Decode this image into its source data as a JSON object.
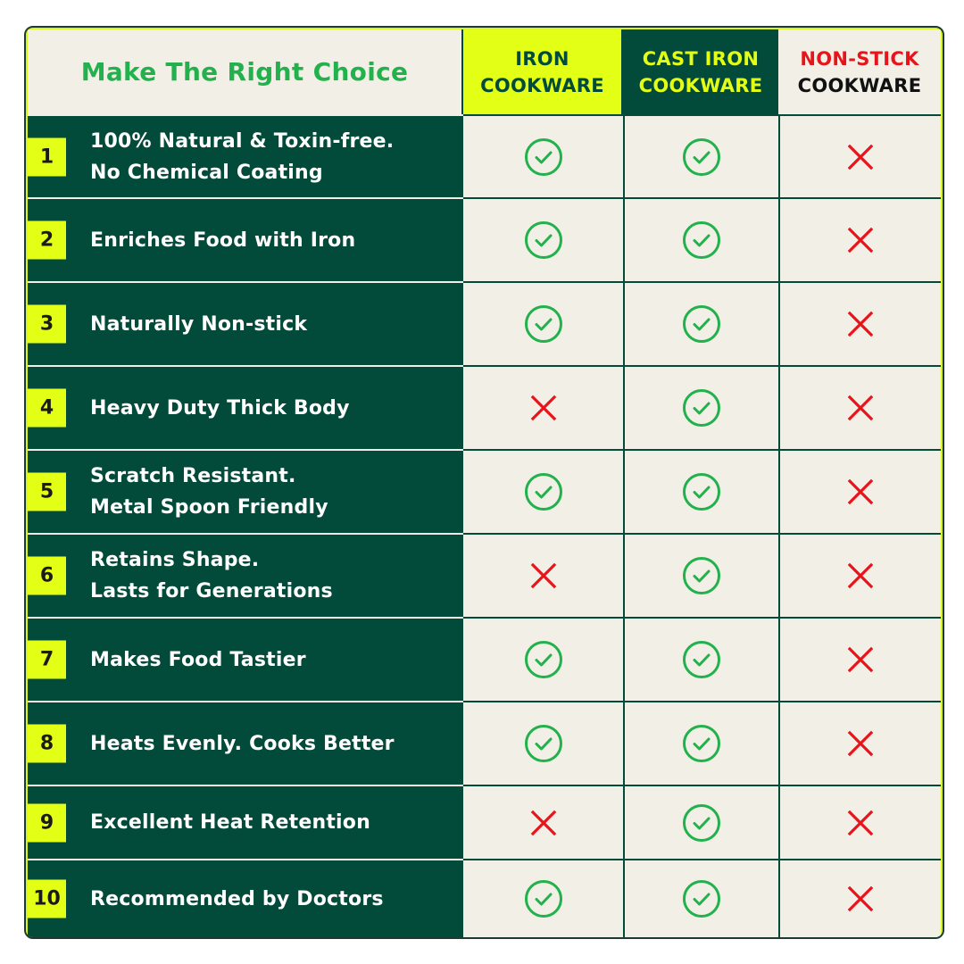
{
  "header": {
    "title": "Make The Right Choice",
    "columns": [
      {
        "line1": "IRON",
        "line2": "COOKWARE"
      },
      {
        "line1": "CAST IRON",
        "line2": "COOKWARE"
      },
      {
        "line1": "NON-STICK",
        "line2": "COOKWARE"
      }
    ]
  },
  "colors": {
    "dark_green": "#024a3a",
    "accent_yellow": "#e3ff16",
    "cream": "#f2f0e6",
    "check_green": "#22b14c",
    "cross_red": "#e8141b"
  },
  "rows": [
    {
      "num": "1",
      "feature": "100% Natural & Toxin-free.\nNo Chemical Coating",
      "values": [
        "check-icon",
        "check-icon",
        "cross-icon"
      ]
    },
    {
      "num": "2",
      "feature": "Enriches Food with Iron",
      "values": [
        "check-icon",
        "check-icon",
        "cross-icon"
      ]
    },
    {
      "num": "3",
      "feature": "Naturally Non-stick",
      "values": [
        "check-icon",
        "check-icon",
        "cross-icon"
      ]
    },
    {
      "num": "4",
      "feature": "Heavy Duty Thick Body",
      "values": [
        "cross-icon",
        "check-icon",
        "cross-icon"
      ]
    },
    {
      "num": "5",
      "feature": "Scratch Resistant.\nMetal Spoon Friendly",
      "values": [
        "check-icon",
        "check-icon",
        "cross-icon"
      ]
    },
    {
      "num": "6",
      "feature": "Retains Shape.\nLasts for Generations",
      "values": [
        "cross-icon",
        "check-icon",
        "cross-icon"
      ]
    },
    {
      "num": "7",
      "feature": "Makes Food Tastier",
      "values": [
        "check-icon",
        "check-icon",
        "cross-icon"
      ]
    },
    {
      "num": "8",
      "feature": "Heats Evenly. Cooks Better",
      "values": [
        "check-icon",
        "check-icon",
        "cross-icon"
      ]
    },
    {
      "num": "9",
      "feature": "Excellent Heat Retention",
      "values": [
        "cross-icon",
        "check-icon",
        "cross-icon"
      ]
    },
    {
      "num": "10",
      "feature": "Recommended by Doctors",
      "values": [
        "check-icon",
        "check-icon",
        "cross-icon"
      ]
    }
  ]
}
